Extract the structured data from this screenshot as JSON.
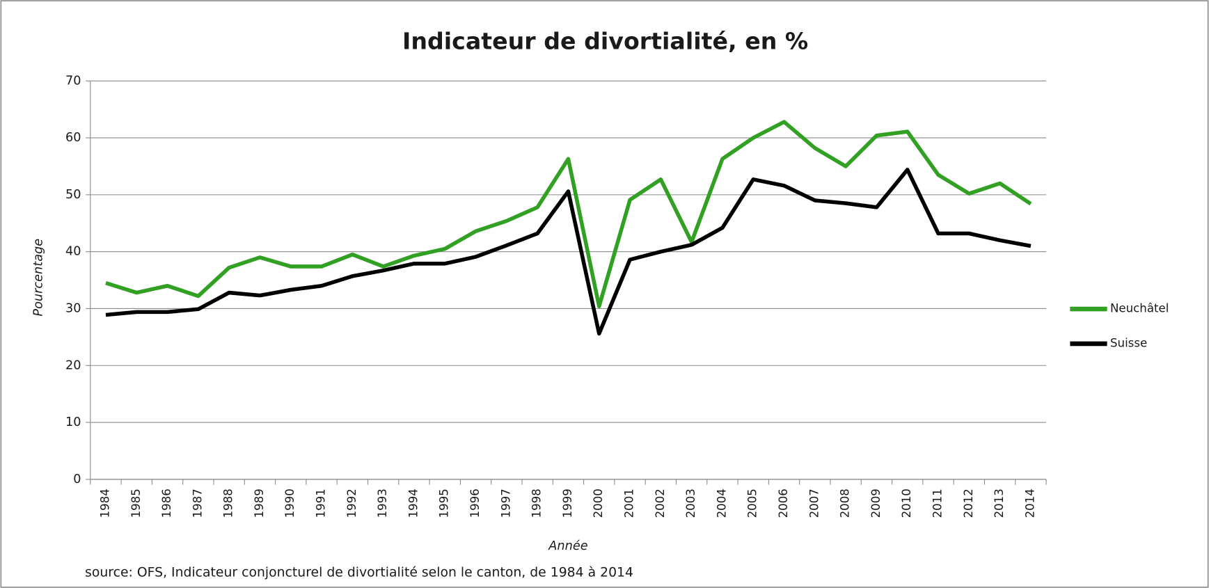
{
  "chart_data": {
    "type": "line",
    "title": "Indicateur de divortialité, en %",
    "x_label": "Année",
    "y_label": "Pourcentage",
    "source": "source: OFS, Indicateur conjoncturel de divortialité selon le canton, de 1984 à 2014",
    "categories": [
      "1984",
      "1985",
      "1986",
      "1987",
      "1988",
      "1989",
      "1990",
      "1991",
      "1992",
      "1993",
      "1994",
      "1995",
      "1996",
      "1997",
      "1998",
      "1999",
      "2000",
      "2001",
      "2002",
      "2003",
      "2004",
      "2005",
      "2006",
      "2007",
      "2008",
      "2009",
      "2010",
      "2011",
      "2012",
      "2013",
      "2014"
    ],
    "series": [
      {
        "name": "Neuchâtel",
        "color": "#31a023",
        "values": [
          34.5,
          32.8,
          34,
          32.2,
          37.2,
          39,
          37.4,
          37.4,
          39.5,
          37.4,
          39.3,
          40.5,
          43.6,
          45.4,
          47.8,
          56.3,
          30.4,
          49.1,
          52.7,
          41.7,
          56.3,
          60,
          62.8,
          58.2,
          55,
          60.4,
          61.1,
          53.5,
          50.2,
          52,
          48.4
        ]
      },
      {
        "name": "Suisse",
        "color": "#000000",
        "values": [
          28.9,
          29.4,
          29.4,
          29.9,
          32.8,
          32.3,
          33.3,
          34,
          35.7,
          36.7,
          37.9,
          37.9,
          39.1,
          41.1,
          43.2,
          50.6,
          25.6,
          38.6,
          40,
          41.2,
          44.2,
          52.7,
          51.6,
          49,
          48.5,
          47.8,
          54.4,
          43.2,
          43.2,
          42,
          41
        ]
      }
    ],
    "ylim": [
      0,
      70
    ],
    "yticks": [
      0,
      10,
      20,
      30,
      40,
      50,
      60,
      70
    ],
    "grid": true,
    "legend": "right"
  }
}
